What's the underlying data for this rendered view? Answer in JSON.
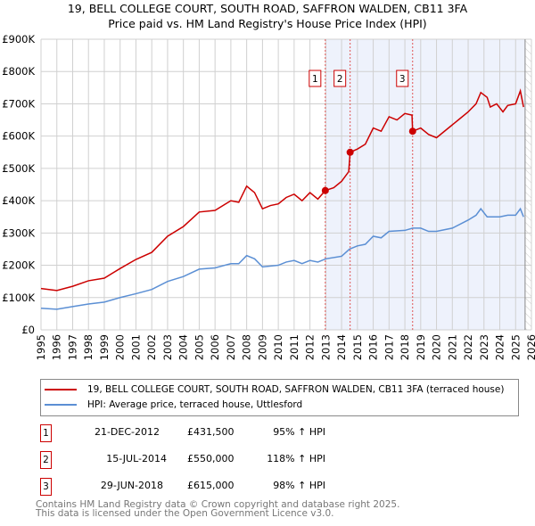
{
  "chart_data": {
    "type": "line",
    "title": "19, BELL COLLEGE COURT, SOUTH ROAD, SAFFRON WALDEN, CB11 3FA",
    "subtitle": "Price paid vs. HM Land Registry's House Price Index (HPI)",
    "xlim": [
      1995,
      2026
    ],
    "ylim": [
      0,
      900000
    ],
    "x_ticks": [
      "1995",
      "1996",
      "1997",
      "1998",
      "1999",
      "2000",
      "2001",
      "2002",
      "2003",
      "2004",
      "2005",
      "2006",
      "2007",
      "2008",
      "2009",
      "2010",
      "2011",
      "2012",
      "2013",
      "2014",
      "2015",
      "2016",
      "2017",
      "2018",
      "2019",
      "2020",
      "2021",
      "2022",
      "2023",
      "2024",
      "2025",
      "2026"
    ],
    "y_ticks": [
      "£0",
      "£100K",
      "£200K",
      "£300K",
      "£400K",
      "£500K",
      "£600K",
      "£700K",
      "£800K",
      "£900K"
    ],
    "series": [
      {
        "name": "19, BELL COLLEGE COURT, SOUTH ROAD, SAFFRON WALDEN, CB11 3FA (terraced house)",
        "color": "#cc0000",
        "x": [
          1995,
          1996,
          1997,
          1998,
          1999,
          2000,
          2001,
          2002,
          2003,
          2004,
          2005,
          2006,
          2007,
          2007.5,
          2008,
          2008.5,
          2009,
          2009.5,
          2010,
          2010.5,
          2011,
          2011.5,
          2012,
          2012.5,
          2012.97,
          2013.5,
          2014,
          2014.45,
          2014.54,
          2015,
          2015.5,
          2016,
          2016.5,
          2017,
          2017.5,
          2018,
          2018.45,
          2018.49,
          2019,
          2019.5,
          2020,
          2020.5,
          2021,
          2021.5,
          2022,
          2022.5,
          2022.8,
          2023.2,
          2023.4,
          2023.8,
          2024.2,
          2024.5,
          2025,
          2025.3,
          2025.5
        ],
        "y": [
          128000,
          122000,
          135000,
          152000,
          160000,
          190000,
          218000,
          240000,
          290000,
          320000,
          365000,
          370000,
          400000,
          395000,
          445000,
          425000,
          375000,
          385000,
          390000,
          410000,
          420000,
          400000,
          425000,
          405000,
          431500,
          440000,
          460000,
          490000,
          550000,
          560000,
          575000,
          625000,
          615000,
          660000,
          650000,
          670000,
          665000,
          615000,
          625000,
          605000,
          595000,
          615000,
          635000,
          655000,
          675000,
          700000,
          735000,
          720000,
          690000,
          700000,
          675000,
          695000,
          700000,
          740000,
          690000
        ]
      },
      {
        "name": "HPI: Average price, terraced house, Uttlesford",
        "color": "#5b8fd4",
        "x": [
          1995,
          1996,
          1997,
          1998,
          1999,
          2000,
          2001,
          2002,
          2003,
          2004,
          2005,
          2006,
          2007,
          2007.5,
          2008,
          2008.5,
          2009,
          2010,
          2010.5,
          2011,
          2011.5,
          2012,
          2012.5,
          2013,
          2014,
          2014.5,
          2015,
          2015.5,
          2016,
          2016.5,
          2017,
          2018,
          2018.5,
          2019,
          2019.5,
          2020,
          2021,
          2022,
          2022.5,
          2022.8,
          2023.2,
          2024,
          2024.5,
          2025,
          2025.3,
          2025.5
        ],
        "y": [
          67000,
          64000,
          72000,
          80000,
          86000,
          100000,
          112000,
          125000,
          150000,
          165000,
          188000,
          192000,
          205000,
          205000,
          230000,
          220000,
          195000,
          200000,
          210000,
          215000,
          205000,
          215000,
          210000,
          220000,
          228000,
          250000,
          260000,
          265000,
          290000,
          285000,
          305000,
          308000,
          315000,
          315000,
          305000,
          305000,
          315000,
          340000,
          355000,
          375000,
          350000,
          350000,
          355000,
          355000,
          375000,
          350000
        ]
      }
    ],
    "sales": [
      {
        "num": "1",
        "date": "21-DEC-2012",
        "price": "£431,500",
        "hpi": "95% ↑ HPI",
        "x": 2012.97,
        "y": 431500
      },
      {
        "num": "2",
        "date": "15-JUL-2014",
        "price": "£550,000",
        "hpi": "118% ↑ HPI",
        "x": 2014.54,
        "y": 550000
      },
      {
        "num": "3",
        "date": "29-JUN-2018",
        "price": "£615,000",
        "hpi": "98% ↑ HPI",
        "x": 2018.49,
        "y": 615000
      }
    ],
    "shaded_from": 2012.97,
    "hatched_from": 2025.6
  },
  "footer": {
    "line1": "Contains HM Land Registry data © Crown copyright and database right 2025.",
    "line2": "This data is licensed under the Open Government Licence v3.0."
  }
}
